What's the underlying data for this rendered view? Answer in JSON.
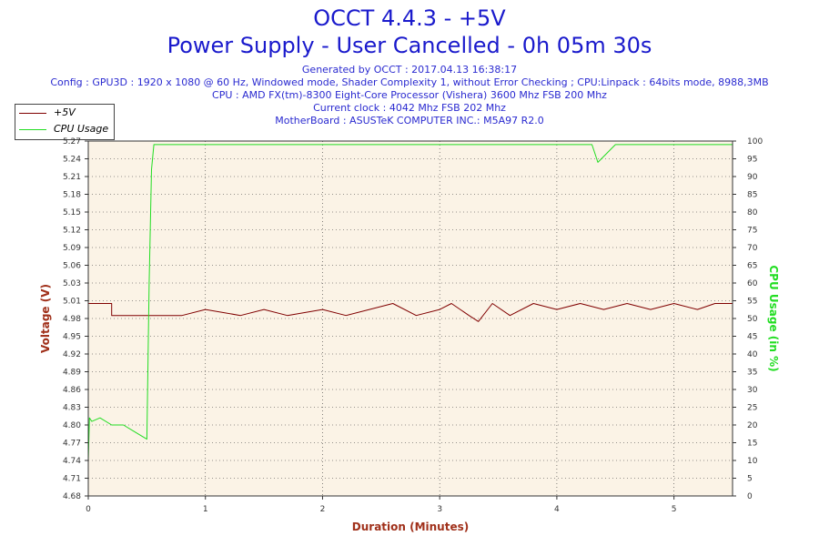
{
  "header": {
    "title": "OCCT 4.4.3 - +5V",
    "subtitle": "Power Supply - User Cancelled - 0h 05m 30s",
    "generated": "Generated by OCCT : 2017.04.13 16:38:17",
    "config": "Config : GPU3D : 1920 x 1080 @ 60 Hz, Windowed mode, Shader Complexity 1, without Error Checking ; CPU:Linpack : 64bits mode, 8988,3MB",
    "cpu": "CPU : AMD FX(tm)-8300 Eight-Core Processor (Vishera) 3600 Mhz FSB 200 Mhz",
    "clock": "Current clock : 4042 Mhz FSB 202 Mhz",
    "motherboard": "MotherBoard : ASUSTeK COMPUTER INC.: M5A97 R2.0"
  },
  "colors": {
    "background": "#ffffff",
    "plot_background": "#fbf3e6",
    "voltage": "#800000",
    "cpu": "#22dd22",
    "grid": "#333333",
    "title": "#1a1acc"
  },
  "chart_data": {
    "type": "line",
    "xlabel": "Duration (Minutes)",
    "ylabel_left": "Voltage (V)",
    "ylabel_right": "CPU Usage (in %)",
    "xlim": [
      0,
      5.5
    ],
    "ylim_left": [
      4.68,
      5.27
    ],
    "ylim_right": [
      0,
      100
    ],
    "x_ticks": [
      "0",
      "1",
      "2",
      "3",
      "4",
      "5"
    ],
    "y_left_ticks": [
      "4.68",
      "4.71",
      "4.74",
      "4.77",
      "4.80",
      "4.83",
      "4.86",
      "4.89",
      "4.92",
      "4.95",
      "4.98",
      "5.01",
      "5.03",
      "5.06",
      "5.09",
      "5.12",
      "5.15",
      "5.18",
      "5.21",
      "5.24",
      "5.27"
    ],
    "y_right_ticks": [
      "0",
      "5",
      "10",
      "15",
      "20",
      "25",
      "30",
      "35",
      "40",
      "45",
      "50",
      "55",
      "60",
      "65",
      "70",
      "75",
      "80",
      "85",
      "90",
      "95",
      "100"
    ],
    "grid": true,
    "legend_position": "top-left",
    "series": [
      {
        "name": "+5V",
        "axis": "left",
        "x": [
          0.0,
          0.2,
          0.2,
          0.35,
          0.55,
          0.8,
          1.0,
          1.3,
          1.5,
          1.7,
          2.0,
          2.2,
          2.4,
          2.6,
          2.8,
          3.0,
          3.1,
          3.25,
          3.33,
          3.45,
          3.6,
          3.8,
          4.0,
          4.2,
          4.4,
          4.6,
          4.8,
          5.0,
          5.2,
          5.35,
          5.5
        ],
        "values": [
          5.0,
          5.0,
          4.98,
          4.98,
          4.98,
          4.98,
          4.99,
          4.98,
          4.99,
          4.98,
          4.99,
          4.98,
          4.99,
          5.0,
          4.98,
          4.99,
          5.0,
          4.98,
          4.97,
          5.0,
          4.98,
          5.0,
          4.99,
          5.0,
          4.99,
          5.0,
          4.99,
          5.0,
          4.99,
          5.0,
          5.0
        ]
      },
      {
        "name": "CPU Usage",
        "axis": "right",
        "x": [
          0.0,
          0.01,
          0.03,
          0.1,
          0.2,
          0.3,
          0.4,
          0.45,
          0.5,
          0.52,
          0.54,
          0.56,
          0.6,
          1.0,
          1.5,
          2.0,
          2.5,
          3.0,
          3.5,
          4.0,
          4.3,
          4.35,
          4.5,
          5.0,
          5.5
        ],
        "values": [
          10,
          22,
          21,
          22,
          20,
          20,
          18,
          17,
          16,
          60,
          92,
          99,
          99,
          99,
          99,
          99,
          99,
          99,
          99,
          99,
          99,
          94,
          99,
          99,
          99
        ]
      }
    ]
  }
}
